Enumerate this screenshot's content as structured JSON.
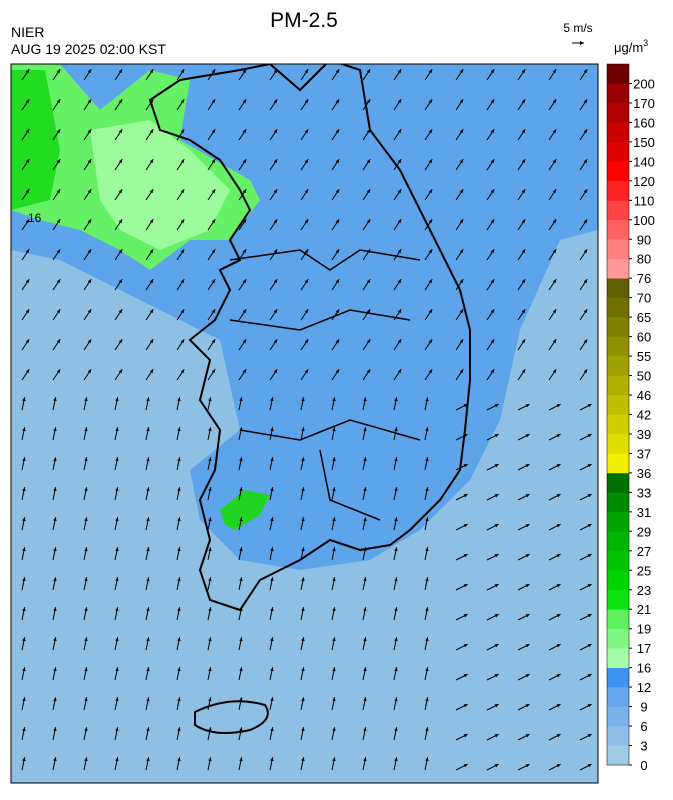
{
  "title": "PM-2.5",
  "source": "NIER",
  "timestamp": "AUG 19 2025 02:00 KST",
  "wind_scale": "5 m/s",
  "unit": "μg/m",
  "unit_exp": "3",
  "map_label": "16",
  "colorbar": {
    "ticks": [
      0,
      3,
      6,
      9,
      12,
      16,
      17,
      19,
      21,
      23,
      25,
      27,
      29,
      31,
      33,
      36,
      37,
      39,
      42,
      46,
      50,
      55,
      60,
      65,
      70,
      76,
      80,
      90,
      100,
      110,
      120,
      140,
      150,
      160,
      170,
      200
    ],
    "colors": [
      "#a2cbe6",
      "#8fbfe8",
      "#7bb3ea",
      "#67a7ec",
      "#3f93ee",
      "#a6ffa6",
      "#82f882",
      "#5ef05e",
      "#10e410",
      "#00d400",
      "#00c400",
      "#00b400",
      "#00a400",
      "#008c00",
      "#007000",
      "#f0f000",
      "#e0e000",
      "#d0d000",
      "#c0c000",
      "#b0b000",
      "#a0a000",
      "#909000",
      "#808000",
      "#707000",
      "#606000",
      "#ff9a9a",
      "#ff8080",
      "#ff6262",
      "#ff4444",
      "#ff2222",
      "#ff0000",
      "#e00000",
      "#c80000",
      "#b00000",
      "#980000",
      "#700000"
    ]
  }
}
